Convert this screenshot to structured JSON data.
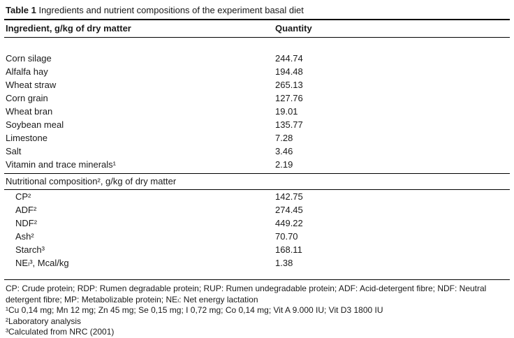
{
  "title": {
    "label": "Table 1",
    "text": "Ingredients and nutrient compositions of the experiment basal diet"
  },
  "table": {
    "header": {
      "ingredient": "Ingredient, g/kg of dry matter",
      "quantity": "Quantity"
    },
    "ingredients": [
      {
        "name": "Corn silage",
        "quantity": "244.74"
      },
      {
        "name": "Alfalfa hay",
        "quantity": "194.48"
      },
      {
        "name": "Wheat straw",
        "quantity": "265.13"
      },
      {
        "name": "Corn grain",
        "quantity": "127.76"
      },
      {
        "name": "Wheat bran",
        "quantity": "19.01"
      },
      {
        "name": "Soybean meal",
        "quantity": "135.77"
      },
      {
        "name": "Limestone",
        "quantity": "7.28"
      },
      {
        "name": "Salt",
        "quantity": "3.46"
      },
      {
        "name": "Vitamin and trace minerals¹",
        "quantity": "2.19"
      }
    ],
    "section_header": "Nutritional composition², g/kg of dry matter",
    "nutrition": [
      {
        "name": "CP²",
        "quantity": "142.75"
      },
      {
        "name": "ADF²",
        "quantity": "274.45"
      },
      {
        "name": "NDF²",
        "quantity": "449.22"
      },
      {
        "name": "Ash²",
        "quantity": "70.70"
      },
      {
        "name": "Starch³",
        "quantity": "168.11"
      },
      {
        "name": "NEₗ³, Mcal/kg",
        "quantity": "1.38"
      }
    ]
  },
  "footnotes": [
    "CP: Crude protein; RDP: Rumen degradable protein; RUP: Rumen undegradable protein; ADF: Acid-detergent fibre; NDF: Neutral detergent fibre; MP: Metabolizable protein; NEₗ: Net energy lactation",
    "¹Cu 0,14 mg; Mn 12 mg; Zn 45 mg; Se 0,15 mg; I 0,72 mg; Co 0,14 mg; Vit A 9.000 IU; Vit D3 1800 IU",
    "²Laboratory analysis",
    "³Calculated from NRC (2001)"
  ]
}
